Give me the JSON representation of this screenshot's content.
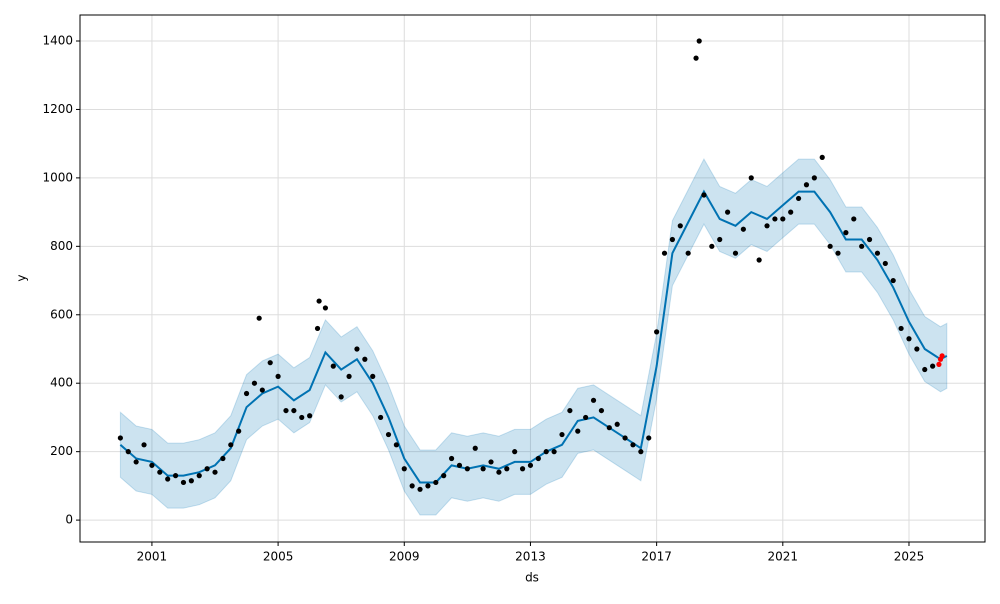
{
  "chart_data": {
    "type": "forecast",
    "xlabel": "ds",
    "ylabel": "y",
    "xlim": [
      1998.72,
      2027.41
    ],
    "ylim": [
      -64,
      1476
    ],
    "xticks": [
      2001,
      2005,
      2009,
      2013,
      2017,
      2021,
      2025
    ],
    "yticks": [
      0,
      200,
      400,
      600,
      800,
      1000,
      1200,
      1400
    ],
    "grid": true,
    "x": [
      2000,
      2000.5,
      2001,
      2001.5,
      2002,
      2002.5,
      2003,
      2003.5,
      2004,
      2004.5,
      2005,
      2005.5,
      2006,
      2006.5,
      2007,
      2007.5,
      2008,
      2008.5,
      2009,
      2009.5,
      2010,
      2010.5,
      2011,
      2011.5,
      2012,
      2012.5,
      2013,
      2013.5,
      2014,
      2014.5,
      2015,
      2015.5,
      2016,
      2016.5,
      2017,
      2017.5,
      2018,
      2018.5,
      2019,
      2019.5,
      2020,
      2020.5,
      2021,
      2021.5,
      2022,
      2022.5,
      2023,
      2023.5,
      2024,
      2024.5,
      2025,
      2025.5,
      2026,
      2026.2
    ],
    "series": [
      {
        "color": "#0072b2",
        "values": [
          220,
          180,
          170,
          130,
          130,
          140,
          160,
          210,
          330,
          370,
          390,
          350,
          380,
          490,
          440,
          470,
          400,
          300,
          180,
          110,
          110,
          160,
          150,
          160,
          150,
          170,
          170,
          200,
          220,
          290,
          300,
          270,
          240,
          210,
          450,
          780,
          870,
          960,
          880,
          860,
          900,
          880,
          920,
          960,
          960,
          900,
          820,
          820,
          760,
          680,
          580,
          500,
          470,
          480
        ]
      }
    ],
    "band": {
      "color": "#0072b2",
      "lower": [
        125,
        85,
        75,
        35,
        35,
        45,
        65,
        115,
        235,
        275,
        295,
        255,
        285,
        395,
        345,
        375,
        305,
        205,
        85,
        15,
        15,
        65,
        55,
        65,
        55,
        75,
        75,
        105,
        125,
        195,
        205,
        175,
        145,
        115,
        355,
        685,
        775,
        865,
        785,
        765,
        805,
        785,
        825,
        865,
        865,
        805,
        725,
        725,
        665,
        585,
        485,
        405,
        375,
        385
      ],
      "upper": [
        315,
        275,
        265,
        225,
        225,
        235,
        255,
        305,
        425,
        465,
        485,
        445,
        475,
        585,
        535,
        565,
        495,
        395,
        275,
        205,
        205,
        255,
        245,
        255,
        245,
        265,
        265,
        295,
        315,
        385,
        395,
        365,
        335,
        305,
        545,
        875,
        965,
        1055,
        975,
        955,
        995,
        975,
        1015,
        1055,
        1055,
        995,
        915,
        915,
        855,
        775,
        675,
        595,
        565,
        575
      ]
    },
    "points": [
      {
        "color": "#000000",
        "x": [
          2000,
          2000.25,
          2000.5,
          2000.75,
          2001,
          2001.25,
          2001.5,
          2001.75,
          2002,
          2002.25,
          2002.5,
          2002.75,
          2003,
          2003.25,
          2003.5,
          2003.75,
          2004,
          2004.25,
          2004.5,
          2004.75,
          2005,
          2005.25,
          2005.5,
          2005.75,
          2006,
          2006.25,
          2006.5,
          2006.75,
          2007,
          2007.25,
          2007.5,
          2007.75,
          2008,
          2008.25,
          2008.5,
          2008.75,
          2009,
          2009.25,
          2009.5,
          2009.75,
          2010,
          2010.25,
          2010.5,
          2010.75,
          2011,
          2011.25,
          2011.5,
          2011.75,
          2012,
          2012.25,
          2012.5,
          2012.75,
          2013,
          2013.25,
          2013.5,
          2013.75,
          2014,
          2014.25,
          2014.5,
          2014.75,
          2015,
          2015.25,
          2015.5,
          2015.75,
          2016,
          2016.25,
          2016.5,
          2016.75,
          2017,
          2017.25,
          2017.5,
          2017.75,
          2018,
          2018.25,
          2018.5,
          2018.75,
          2019,
          2019.25,
          2019.5,
          2019.75,
          2020,
          2020.25,
          2020.5,
          2020.75,
          2021,
          2021.25,
          2021.5,
          2021.75,
          2022,
          2022.25,
          2022.5,
          2022.75,
          2023,
          2023.25,
          2023.5,
          2023.75,
          2024,
          2024.25,
          2024.5,
          2024.75,
          2025,
          2025.25,
          2025.5,
          2025.75,
          2018.35,
          2006.3,
          2004.4
        ],
        "values": [
          240,
          200,
          170,
          220,
          160,
          140,
          120,
          130,
          110,
          115,
          130,
          150,
          140,
          180,
          220,
          260,
          370,
          400,
          380,
          460,
          420,
          320,
          320,
          300,
          305,
          560,
          620,
          450,
          360,
          420,
          500,
          470,
          420,
          300,
          250,
          220,
          150,
          100,
          90,
          100,
          110,
          130,
          180,
          160,
          150,
          210,
          150,
          170,
          140,
          150,
          200,
          150,
          160,
          180,
          200,
          200,
          250,
          320,
          260,
          300,
          350,
          320,
          270,
          280,
          240,
          220,
          200,
          240,
          550,
          780,
          820,
          860,
          780,
          1350,
          950,
          800,
          820,
          900,
          780,
          850,
          1000,
          760,
          860,
          880,
          880,
          900,
          940,
          980,
          1000,
          1060,
          800,
          780,
          840,
          880,
          800,
          820,
          780,
          750,
          700,
          560,
          530,
          500,
          440,
          450,
          1400,
          640,
          590
        ]
      },
      {
        "color": "#ff0000",
        "x": [
          2025.95,
          2026.0,
          2026.05
        ],
        "values": [
          455,
          470,
          480
        ]
      }
    ]
  }
}
